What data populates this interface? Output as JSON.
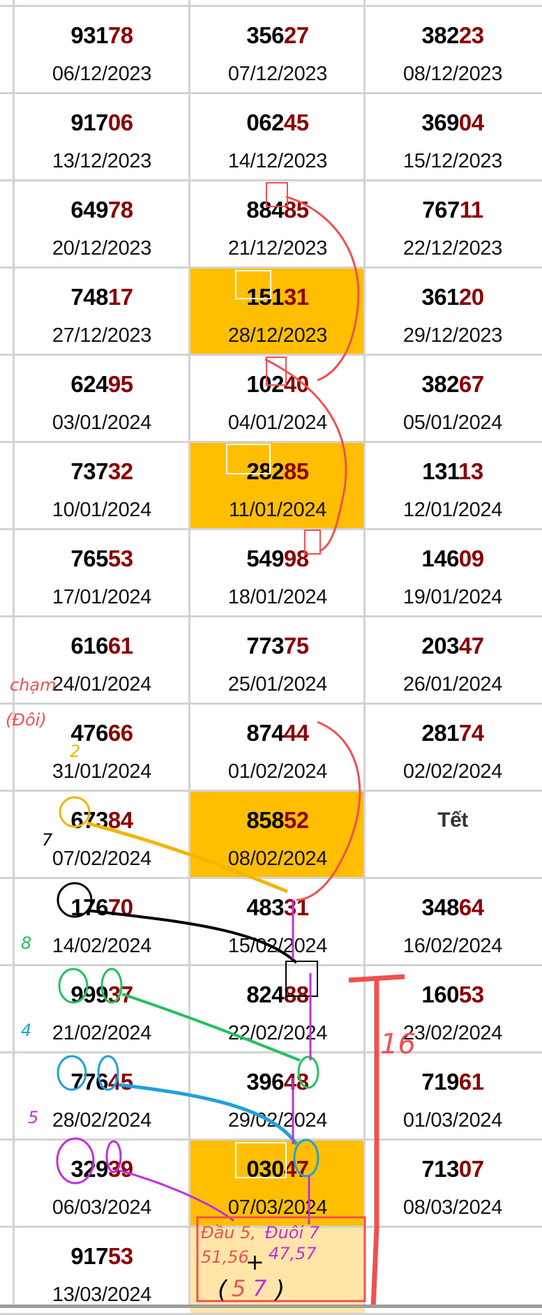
{
  "colors": {
    "highlight": "#ffbf00",
    "note_cell": "#ffe6a8",
    "tail_digits": "#8b0000",
    "grid": "#d3d3d3"
  },
  "rows": [
    [
      {
        "head": "931",
        "tail": "78",
        "date": "06/12/2023"
      },
      {
        "head": "356",
        "tail": "27",
        "date": "07/12/2023"
      },
      {
        "head": "382",
        "tail": "23",
        "date": "08/12/2023"
      }
    ],
    [
      {
        "head": "917",
        "tail": "06",
        "date": "13/12/2023"
      },
      {
        "head": "062",
        "tail": "45",
        "date": "14/12/2023"
      },
      {
        "head": "369",
        "tail": "04",
        "date": "15/12/2023"
      }
    ],
    [
      {
        "head": "649",
        "tail": "78",
        "date": "20/12/2023"
      },
      {
        "head": "884",
        "tail": "85",
        "date": "21/12/2023"
      },
      {
        "head": "767",
        "tail": "11",
        "date": "22/12/2023"
      }
    ],
    [
      {
        "head": "748",
        "tail": "17",
        "date": "27/12/2023"
      },
      {
        "head": "151",
        "tail": "31",
        "date": "28/12/2023",
        "highlight": true
      },
      {
        "head": "361",
        "tail": "20",
        "date": "29/12/2023"
      }
    ],
    [
      {
        "head": "624",
        "tail": "95",
        "date": "03/01/2024"
      },
      {
        "head": "102",
        "tail": "40",
        "date": "04/01/2024"
      },
      {
        "head": "382",
        "tail": "67",
        "date": "05/01/2024"
      }
    ],
    [
      {
        "head": "737",
        "tail": "32",
        "date": "10/01/2024"
      },
      {
        "head": "282",
        "tail": "85",
        "date": "11/01/2024",
        "highlight": true
      },
      {
        "head": "131",
        "tail": "13",
        "date": "12/01/2024"
      }
    ],
    [
      {
        "head": "765",
        "tail": "53",
        "date": "17/01/2024"
      },
      {
        "head": "549",
        "tail": "98",
        "date": "18/01/2024"
      },
      {
        "head": "146",
        "tail": "09",
        "date": "19/01/2024"
      }
    ],
    [
      {
        "head": "616",
        "tail": "61",
        "date": "24/01/2024"
      },
      {
        "head": "773",
        "tail": "75",
        "date": "25/01/2024"
      },
      {
        "head": "203",
        "tail": "47",
        "date": "26/01/2024"
      }
    ],
    [
      {
        "head": "476",
        "tail": "66",
        "date": "31/01/2024"
      },
      {
        "head": "874",
        "tail": "44",
        "date": "01/02/2024"
      },
      {
        "head": "281",
        "tail": "74",
        "date": "02/02/2024"
      }
    ],
    [
      {
        "head": "673",
        "tail": "84",
        "date": "07/02/2024"
      },
      {
        "head": "858",
        "tail": "52",
        "date": "08/02/2024",
        "highlight": true
      },
      {
        "label": "Tết"
      }
    ],
    [
      {
        "head": "176",
        "tail": "70",
        "date": "14/02/2024"
      },
      {
        "head": "483",
        "tail": "31",
        "date": "15/02/2024"
      },
      {
        "head": "348",
        "tail": "64",
        "date": "16/02/2024"
      }
    ],
    [
      {
        "head": "999",
        "tail": "37",
        "date": "21/02/2024"
      },
      {
        "head": "824",
        "tail": "88",
        "date": "22/02/2024"
      },
      {
        "head": "160",
        "tail": "53",
        "date": "23/02/2024"
      }
    ],
    [
      {
        "head": "776",
        "tail": "45",
        "date": "28/02/2024"
      },
      {
        "head": "396",
        "tail": "48",
        "date": "29/02/2024"
      },
      {
        "head": "719",
        "tail": "61",
        "date": "01/03/2024"
      }
    ],
    [
      {
        "head": "329",
        "tail": "39",
        "date": "06/03/2024"
      },
      {
        "head": "030",
        "tail": "47",
        "date": "07/03/2024",
        "highlight": true
      },
      {
        "head": "713",
        "tail": "07",
        "date": "08/03/2024"
      }
    ],
    [
      {
        "head": "917",
        "tail": "53",
        "date": "13/03/2024"
      },
      {
        "note": true
      },
      {
        "empty": true
      }
    ]
  ],
  "annotations": {
    "cham": "chạm",
    "doi": "(Đôi)",
    "num_2": "2",
    "num_7": "7",
    "num_8": "8",
    "num_4": "4",
    "num_5": "5",
    "num_16": "16",
    "note_line1_red": "Đầu 5,",
    "note_line1_purple": "Đuôi 7",
    "note_line2_red": "51,56",
    "note_plus": "+",
    "note_line2_purple": "47,57",
    "note_result_red": "5",
    "note_result_purple": "7"
  }
}
